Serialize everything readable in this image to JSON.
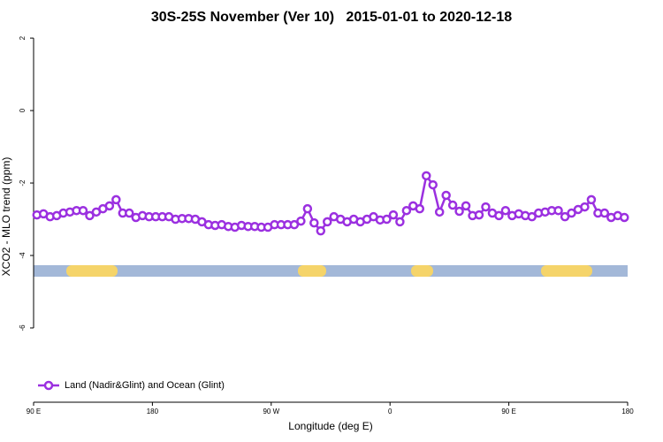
{
  "chart_data": {
    "type": "line",
    "title": "30S-25S November (Ver 10)   2015-01-01 to 2020-12-18",
    "xlabel": "Longitude (deg E)",
    "ylabel": "XCO2 - MLO trend (ppm)",
    "xlim": [
      90,
      540
    ],
    "xticks": [
      {
        "value": 90,
        "label": "90 E"
      },
      180,
      {
        "value": 270,
        "label": "90 W"
      },
      {
        "value": 360,
        "label": "0"
      },
      {
        "value": 450,
        "label": "90 E"
      },
      {
        "value": 540,
        "label": "180"
      }
    ],
    "ylim": [
      -8.05,
      2.1
    ],
    "yticks": [
      -6,
      -4,
      -2,
      0,
      2
    ],
    "legend": "bottom-left",
    "x": [
      92.5,
      97.5,
      102.5,
      107.5,
      112.5,
      117.5,
      122.5,
      127.5,
      132.5,
      137.5,
      142.5,
      147.5,
      152.5,
      157.5,
      162.5,
      167.5,
      172.5,
      177.5,
      182.5,
      187.5,
      192.5,
      197.5,
      202.5,
      207.5,
      212.5,
      217.5,
      222.5,
      227.5,
      232.5,
      237.5,
      242.5,
      247.5,
      252.5,
      257.5,
      262.5,
      267.5,
      272.5,
      277.5,
      282.5,
      287.5,
      292.5,
      297.5,
      302.5,
      307.5,
      312.5,
      317.5,
      322.5,
      327.5,
      332.5,
      337.5,
      342.5,
      347.5,
      352.5,
      357.5,
      362.5,
      367.5,
      372.5,
      377.5,
      382.5,
      387.5,
      392.5,
      397.5,
      402.5,
      407.5,
      412.5,
      417.5,
      422.5,
      427.5,
      432.5,
      437.5,
      442.5,
      447.5,
      452.5,
      457.5,
      462.5,
      467.5,
      472.5,
      477.5,
      482.5,
      487.5,
      492.5,
      497.5,
      502.5,
      507.5,
      512.5,
      517.5,
      522.5,
      527.5,
      532.5,
      537.5
    ],
    "series": [
      {
        "name": "Land (Nadir&Glint) and Ocean (Glint)",
        "color": "#9b30e0",
        "values": [
          -2.88,
          -2.85,
          -2.93,
          -2.9,
          -2.83,
          -2.8,
          -2.76,
          -2.76,
          -2.9,
          -2.8,
          -2.71,
          -2.63,
          -2.46,
          -2.83,
          -2.83,
          -2.95,
          -2.9,
          -2.93,
          -2.93,
          -2.93,
          -2.93,
          -3.0,
          -2.98,
          -2.98,
          -3.0,
          -3.07,
          -3.15,
          -3.17,
          -3.15,
          -3.2,
          -3.22,
          -3.17,
          -3.2,
          -3.2,
          -3.22,
          -3.22,
          -3.15,
          -3.15,
          -3.15,
          -3.15,
          -3.05,
          -2.71,
          -3.1,
          -3.32,
          -3.07,
          -2.93,
          -3.0,
          -3.07,
          -3.0,
          -3.07,
          -3.0,
          -2.93,
          -3.02,
          -3.0,
          -2.88,
          -3.07,
          -2.76,
          -2.63,
          -2.71,
          -1.8,
          -2.05,
          -2.8,
          -2.34,
          -2.61,
          -2.78,
          -2.63,
          -2.9,
          -2.88,
          -2.66,
          -2.83,
          -2.9,
          -2.76,
          -2.9,
          -2.85,
          -2.9,
          -2.93,
          -2.83,
          -2.8,
          -2.76,
          -2.76,
          -2.93,
          -2.83,
          -2.73,
          -2.66,
          -2.46,
          -2.83,
          -2.83,
          -2.95,
          -2.9,
          -2.95
        ]
      }
    ]
  }
}
